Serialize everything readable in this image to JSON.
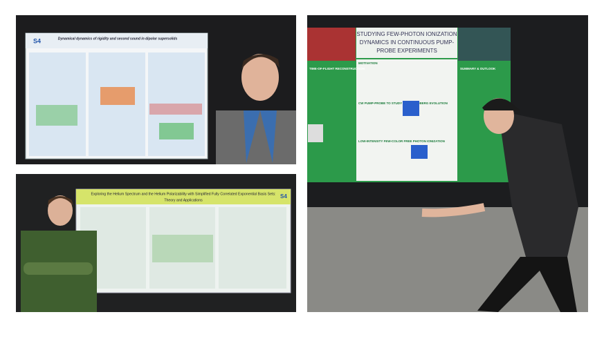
{
  "photos": [
    {
      "poster_title": "Dynamical dynamics of rigidity and second sound in dipolar supersolids",
      "logo": "S4"
    },
    {
      "poster_title_lines": [
        "Exploring the Helium Spectrum and the Helium Polarizability with Simplified Fully Correlated Exponential Basis Sets:",
        "Theory and Applications"
      ],
      "logo": "S4"
    },
    {
      "poster_title_lines": [
        "STUDYING FEW-PHOTON IONIZATION",
        "DYNAMICS IN CONTINUOUS PUMP-",
        "PROBE EXPERIMENTS"
      ],
      "headings": [
        "MOTIVATION",
        "TIME-OF-FLIGHT RECONSTRUCTION",
        "CW PUMP-PROBE TO STUDY SLOW RYDBERG EVOLUTION",
        "LOW-INTENSITY FEW-COLOR FREE PHOTON IONIZATION",
        "SUMMARY & OUTLOOK"
      ]
    }
  ]
}
